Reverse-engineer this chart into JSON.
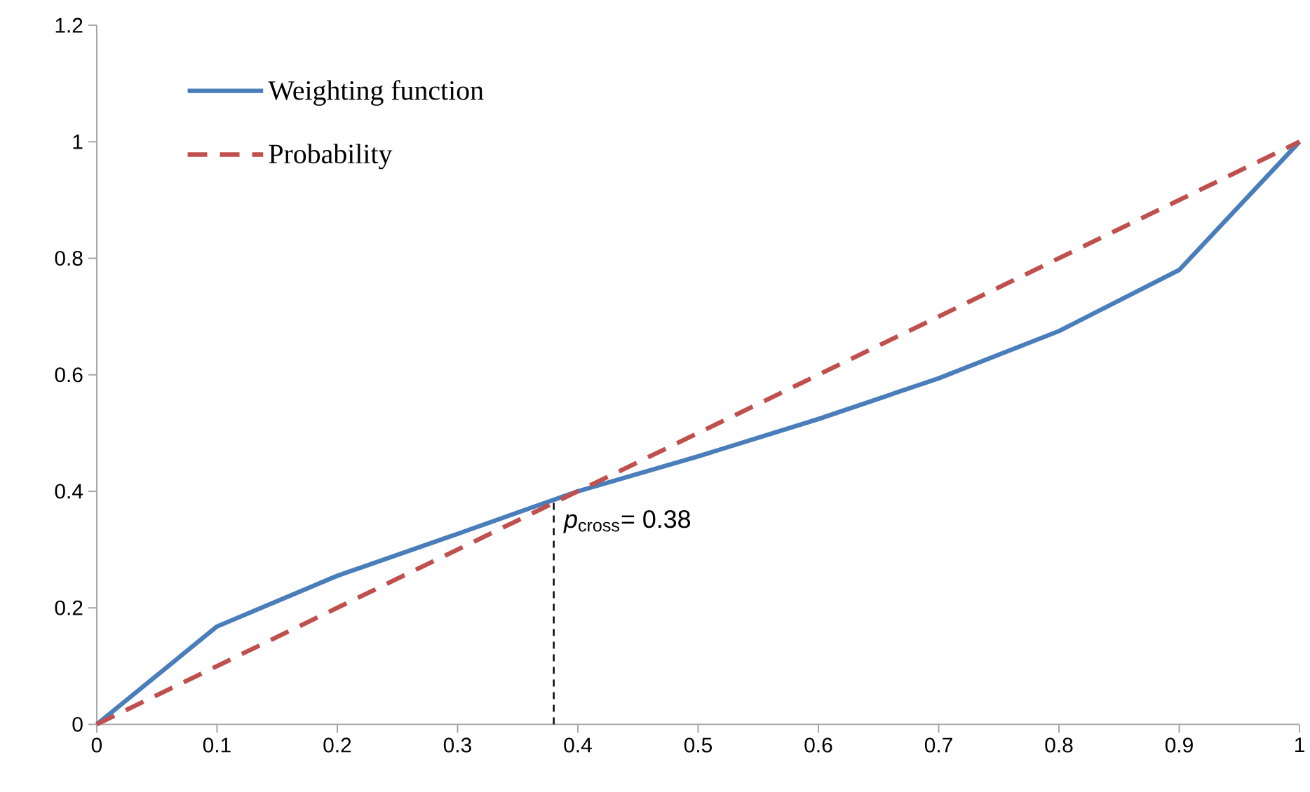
{
  "chart_data": {
    "type": "line",
    "x": [
      0,
      0.1,
      0.2,
      0.3,
      0.4,
      0.5,
      0.6,
      0.7,
      0.8,
      0.9,
      1
    ],
    "series": [
      {
        "name": "Weighting function",
        "color": "#4a7ebb",
        "line_style": "solid",
        "values": [
          0,
          0.168,
          0.255,
          0.327,
          0.4,
          0.46,
          0.524,
          0.594,
          0.675,
          0.78,
          1
        ]
      },
      {
        "name": "Probability",
        "color": "#c0504d",
        "line_style": "dashed",
        "values": [
          0,
          0.1,
          0.2,
          0.3,
          0.4,
          0.5,
          0.6,
          0.7,
          0.8,
          0.9,
          1
        ]
      }
    ],
    "xlim": [
      0,
      1
    ],
    "ylim": [
      0,
      1.2
    ],
    "xticks": [
      0,
      0.1,
      0.2,
      0.3,
      0.4,
      0.5,
      0.6,
      0.7,
      0.8,
      0.9,
      1
    ],
    "yticks": [
      0,
      0.2,
      0.4,
      0.6,
      0.8,
      1,
      1.2
    ],
    "annotations": [
      {
        "text": "*p*$_{cross}$= 0.38",
        "x": 0.38,
        "y": 0.38
      }
    ],
    "legend": "top left"
  }
}
